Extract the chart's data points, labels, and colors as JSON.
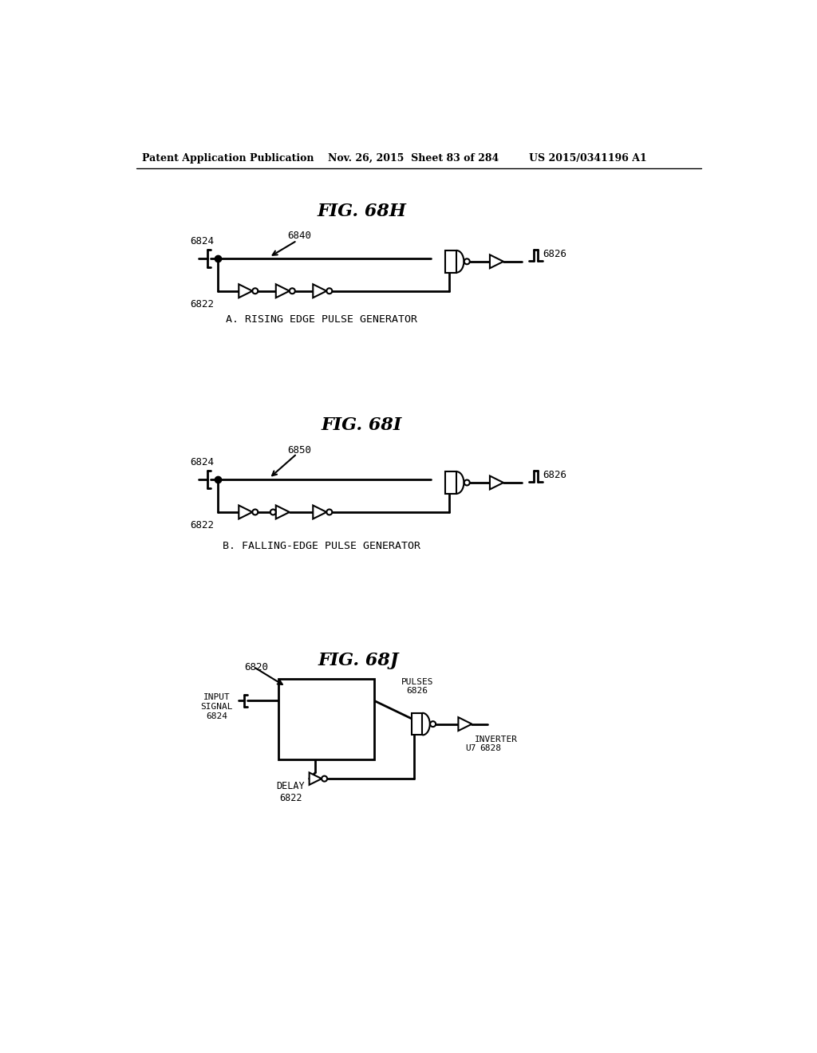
{
  "bg_color": "#ffffff",
  "header_left": "Patent Application Publication",
  "header_mid": "Nov. 26, 2015  Sheet 83 of 284",
  "header_right": "US 2015/0341196 A1",
  "fig1_title": "FIG. 68H",
  "fig1_caption": "A. RISING EDGE PULSE GENERATOR",
  "fig2_title": "FIG. 68I",
  "fig2_caption": "B. FALLING-EDGE PULSE GENERATOR",
  "fig3_title": "FIG. 68J",
  "label_6824": "6824",
  "label_6822": "6822",
  "label_6826": "6826",
  "label_6840": "6840",
  "label_6850": "6850",
  "label_6820": "6820",
  "label_pulses_6826": "PULSES\n6826",
  "label_input_signal_6824": "INPUT\nSIGNAL\n6824",
  "label_delay_6822": "DELAY\n6822",
  "label_inverter": "INVERTER",
  "label_u7": "U7",
  "label_6828": "6828"
}
